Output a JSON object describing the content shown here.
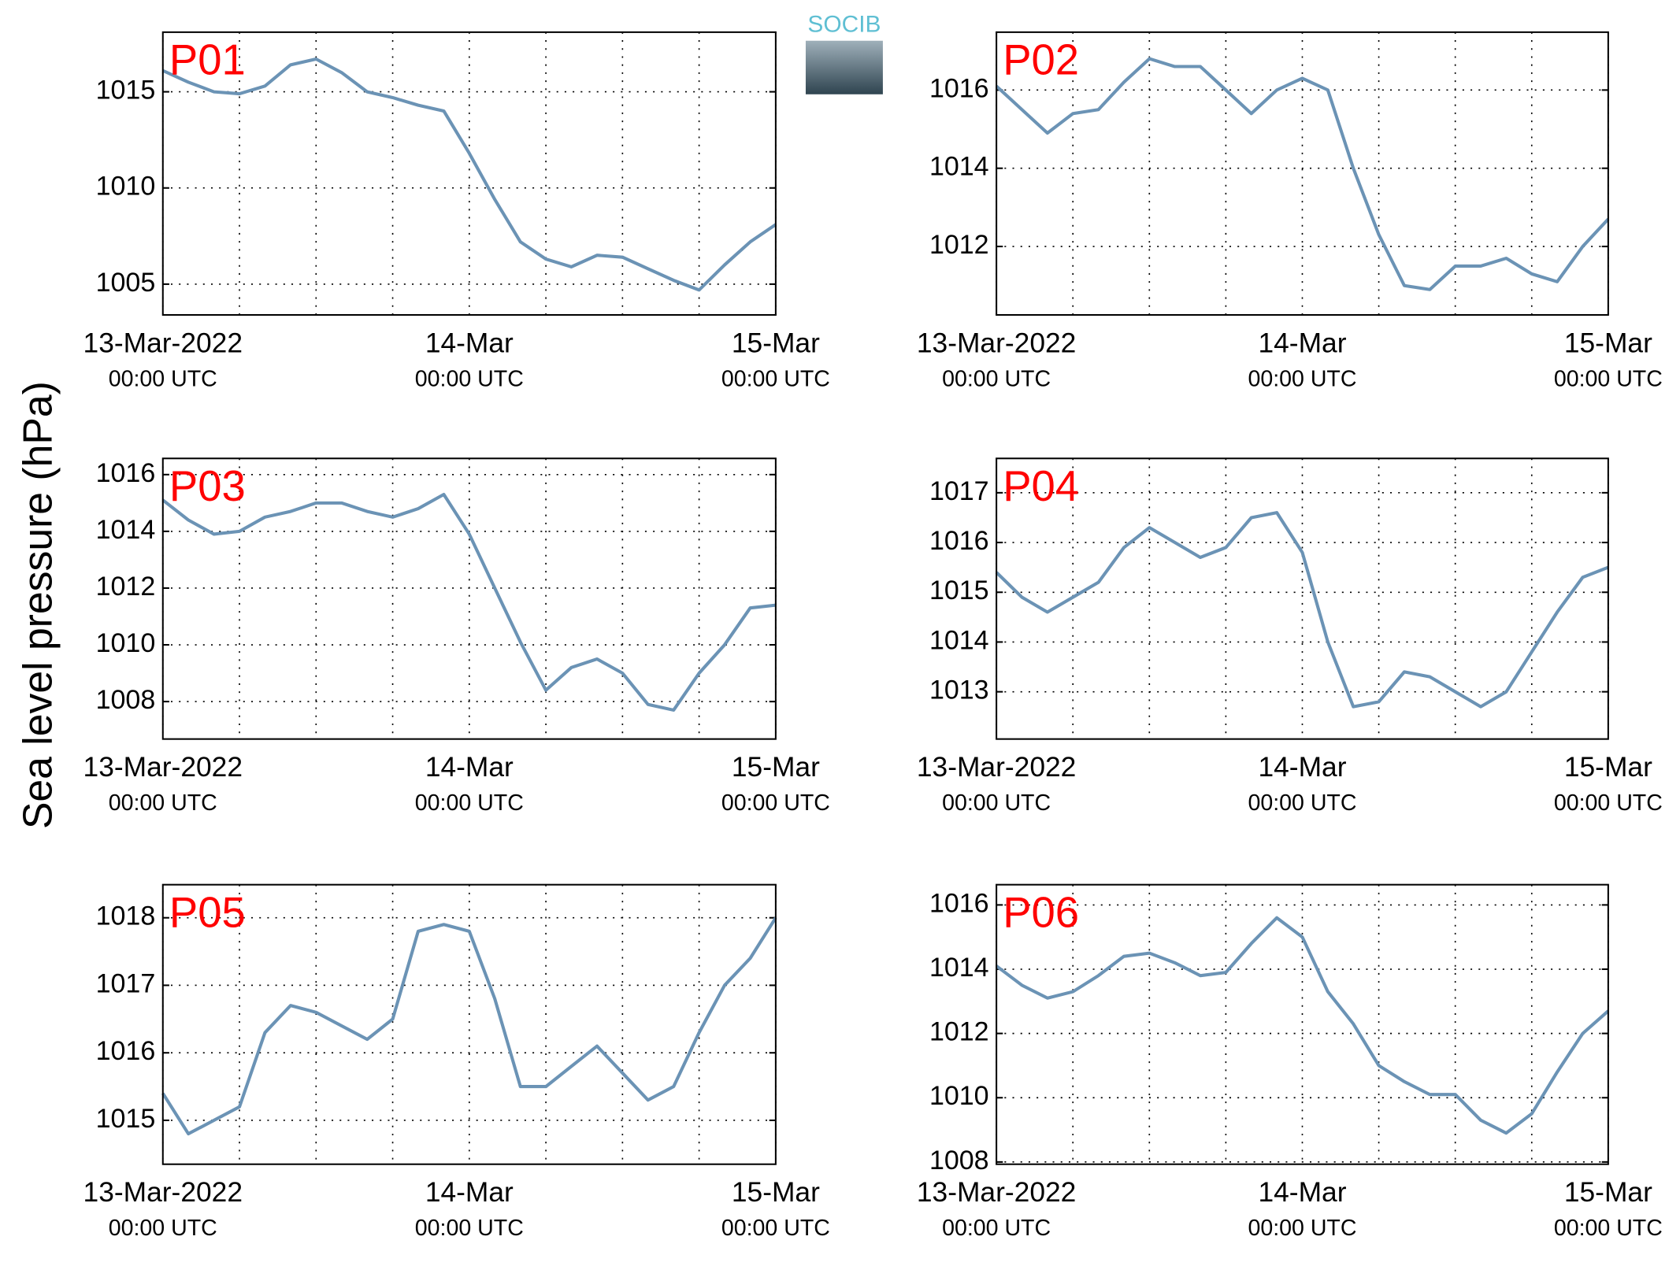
{
  "ylabel": "Sea level pressure (hPa)",
  "logo": "SOCIB",
  "chart_data": [
    {
      "type": "line",
      "label": "P01",
      "color": "#6b93b5",
      "x": [
        "2022-03-13T00:00",
        "2022-03-13T02:00",
        "2022-03-13T04:00",
        "2022-03-13T06:00",
        "2022-03-13T08:00",
        "2022-03-13T10:00",
        "2022-03-13T12:00",
        "2022-03-13T14:00",
        "2022-03-13T16:00",
        "2022-03-13T18:00",
        "2022-03-13T20:00",
        "2022-03-13T22:00",
        "2022-03-14T00:00",
        "2022-03-14T02:00",
        "2022-03-14T04:00",
        "2022-03-14T06:00",
        "2022-03-14T08:00",
        "2022-03-14T10:00",
        "2022-03-14T12:00",
        "2022-03-14T14:00",
        "2022-03-14T16:00",
        "2022-03-14T18:00",
        "2022-03-14T20:00",
        "2022-03-14T22:00",
        "2022-03-15T00:00"
      ],
      "values": [
        1016.1,
        1015.5,
        1015.0,
        1014.9,
        1015.3,
        1016.4,
        1016.7,
        1016.0,
        1015.0,
        1014.7,
        1014.3,
        1014.0,
        1011.8,
        1009.4,
        1007.2,
        1006.3,
        1005.9,
        1006.5,
        1006.4,
        1005.8,
        1005.2,
        1004.7,
        1006.0,
        1007.2,
        1008.1
      ],
      "xlim": [
        "2022-03-13T00:00",
        "2022-03-15T00:00"
      ],
      "xticks": [
        {
          "value": "2022-03-13T00:00",
          "label": [
            "13-Mar-2022",
            "00:00 UTC"
          ]
        },
        {
          "value": "2022-03-14T00:00",
          "label": [
            "14-Mar",
            "00:00 UTC"
          ]
        },
        {
          "value": "2022-03-15T00:00",
          "label": [
            "15-Mar",
            "00:00 UTC"
          ]
        }
      ],
      "xminor": [
        "2022-03-13T06:00",
        "2022-03-13T12:00",
        "2022-03-13T18:00",
        "2022-03-14T06:00",
        "2022-03-14T12:00",
        "2022-03-14T18:00"
      ],
      "ylim": [
        1003.4,
        1018.1
      ],
      "yticks": [
        1005,
        1010,
        1015
      ],
      "grid": true
    },
    {
      "type": "line",
      "label": "P02",
      "color": "#6b93b5",
      "x": [
        "2022-03-13T00:00",
        "2022-03-13T02:00",
        "2022-03-13T04:00",
        "2022-03-13T06:00",
        "2022-03-13T08:00",
        "2022-03-13T10:00",
        "2022-03-13T12:00",
        "2022-03-13T14:00",
        "2022-03-13T16:00",
        "2022-03-13T18:00",
        "2022-03-13T20:00",
        "2022-03-13T22:00",
        "2022-03-14T00:00",
        "2022-03-14T02:00",
        "2022-03-14T04:00",
        "2022-03-14T06:00",
        "2022-03-14T08:00",
        "2022-03-14T10:00",
        "2022-03-14T12:00",
        "2022-03-14T14:00",
        "2022-03-14T16:00",
        "2022-03-14T18:00",
        "2022-03-14T20:00",
        "2022-03-14T22:00",
        "2022-03-15T00:00"
      ],
      "values": [
        1016.1,
        1015.5,
        1014.9,
        1015.4,
        1015.5,
        1016.2,
        1016.8,
        1016.6,
        1016.6,
        1016.0,
        1015.4,
        1016.0,
        1016.3,
        1016.0,
        1014.0,
        1012.3,
        1011.0,
        1010.9,
        1011.5,
        1011.5,
        1011.7,
        1011.3,
        1011.1,
        1012.0,
        1012.7
      ],
      "xlim": [
        "2022-03-13T00:00",
        "2022-03-15T00:00"
      ],
      "xticks": [
        {
          "value": "2022-03-13T00:00",
          "label": [
            "13-Mar-2022",
            "00:00 UTC"
          ]
        },
        {
          "value": "2022-03-14T00:00",
          "label": [
            "14-Mar",
            "00:00 UTC"
          ]
        },
        {
          "value": "2022-03-15T00:00",
          "label": [
            "15-Mar",
            "00:00 UTC"
          ]
        }
      ],
      "xminor": [
        "2022-03-13T06:00",
        "2022-03-13T12:00",
        "2022-03-13T18:00",
        "2022-03-14T06:00",
        "2022-03-14T12:00",
        "2022-03-14T18:00"
      ],
      "ylim": [
        1010.25,
        1017.48
      ],
      "yticks": [
        1012,
        1014,
        1016
      ],
      "grid": true
    },
    {
      "type": "line",
      "label": "P03",
      "color": "#6b93b5",
      "x": [
        "2022-03-13T00:00",
        "2022-03-13T02:00",
        "2022-03-13T04:00",
        "2022-03-13T06:00",
        "2022-03-13T08:00",
        "2022-03-13T10:00",
        "2022-03-13T12:00",
        "2022-03-13T14:00",
        "2022-03-13T16:00",
        "2022-03-13T18:00",
        "2022-03-13T20:00",
        "2022-03-13T22:00",
        "2022-03-14T00:00",
        "2022-03-14T02:00",
        "2022-03-14T04:00",
        "2022-03-14T06:00",
        "2022-03-14T08:00",
        "2022-03-14T10:00",
        "2022-03-14T12:00",
        "2022-03-14T14:00",
        "2022-03-14T16:00",
        "2022-03-14T18:00",
        "2022-03-14T20:00",
        "2022-03-14T22:00",
        "2022-03-15T00:00"
      ],
      "values": [
        1015.1,
        1014.4,
        1013.9,
        1014.0,
        1014.5,
        1014.7,
        1015.0,
        1015.0,
        1014.7,
        1014.5,
        1014.8,
        1015.3,
        1013.9,
        1012.0,
        1010.1,
        1008.4,
        1009.2,
        1009.5,
        1009.0,
        1007.9,
        1007.7,
        1009.0,
        1010.0,
        1011.3,
        1011.4
      ],
      "xlim": [
        "2022-03-13T00:00",
        "2022-03-15T00:00"
      ],
      "xticks": [
        {
          "value": "2022-03-13T00:00",
          "label": [
            "13-Mar-2022",
            "00:00 UTC"
          ]
        },
        {
          "value": "2022-03-14T00:00",
          "label": [
            "14-Mar",
            "00:00 UTC"
          ]
        },
        {
          "value": "2022-03-15T00:00",
          "label": [
            "15-Mar",
            "00:00 UTC"
          ]
        }
      ],
      "xminor": [
        "2022-03-13T06:00",
        "2022-03-13T12:00",
        "2022-03-13T18:00",
        "2022-03-14T06:00",
        "2022-03-14T12:00",
        "2022-03-14T18:00"
      ],
      "ylim": [
        1006.68,
        1016.57
      ],
      "yticks": [
        1008,
        1010,
        1012,
        1014,
        1016
      ],
      "grid": true
    },
    {
      "type": "line",
      "label": "P04",
      "color": "#6b93b5",
      "x": [
        "2022-03-13T00:00",
        "2022-03-13T02:00",
        "2022-03-13T04:00",
        "2022-03-13T06:00",
        "2022-03-13T08:00",
        "2022-03-13T10:00",
        "2022-03-13T12:00",
        "2022-03-13T14:00",
        "2022-03-13T16:00",
        "2022-03-13T18:00",
        "2022-03-13T20:00",
        "2022-03-13T22:00",
        "2022-03-14T00:00",
        "2022-03-14T02:00",
        "2022-03-14T04:00",
        "2022-03-14T06:00",
        "2022-03-14T08:00",
        "2022-03-14T10:00",
        "2022-03-14T12:00",
        "2022-03-14T14:00",
        "2022-03-14T16:00",
        "2022-03-14T18:00",
        "2022-03-14T20:00",
        "2022-03-14T22:00",
        "2022-03-15T00:00"
      ],
      "values": [
        1015.4,
        1014.9,
        1014.6,
        1014.9,
        1015.2,
        1015.9,
        1016.3,
        1016.0,
        1015.7,
        1015.9,
        1016.5,
        1016.6,
        1015.8,
        1014.0,
        1012.7,
        1012.8,
        1013.4,
        1013.3,
        1013.0,
        1012.7,
        1013.0,
        1013.8,
        1014.6,
        1015.3,
        1015.5
      ],
      "xlim": [
        "2022-03-13T00:00",
        "2022-03-15T00:00"
      ],
      "xticks": [
        {
          "value": "2022-03-13T00:00",
          "label": [
            "13-Mar-2022",
            "00:00 UTC"
          ]
        },
        {
          "value": "2022-03-14T00:00",
          "label": [
            "14-Mar",
            "00:00 UTC"
          ]
        },
        {
          "value": "2022-03-15T00:00",
          "label": [
            "15-Mar",
            "00:00 UTC"
          ]
        }
      ],
      "xminor": [
        "2022-03-13T06:00",
        "2022-03-13T12:00",
        "2022-03-13T18:00",
        "2022-03-14T06:00",
        "2022-03-14T12:00",
        "2022-03-14T18:00"
      ],
      "ylim": [
        1012.05,
        1017.69
      ],
      "yticks": [
        1013,
        1014,
        1015,
        1016,
        1017
      ],
      "grid": true
    },
    {
      "type": "line",
      "label": "P05",
      "color": "#6b93b5",
      "x": [
        "2022-03-13T00:00",
        "2022-03-13T02:00",
        "2022-03-13T04:00",
        "2022-03-13T06:00",
        "2022-03-13T08:00",
        "2022-03-13T10:00",
        "2022-03-13T12:00",
        "2022-03-13T14:00",
        "2022-03-13T16:00",
        "2022-03-13T18:00",
        "2022-03-13T20:00",
        "2022-03-13T22:00",
        "2022-03-14T00:00",
        "2022-03-14T02:00",
        "2022-03-14T04:00",
        "2022-03-14T06:00",
        "2022-03-14T08:00",
        "2022-03-14T10:00",
        "2022-03-14T12:00",
        "2022-03-14T14:00",
        "2022-03-14T16:00",
        "2022-03-14T18:00",
        "2022-03-14T20:00",
        "2022-03-14T22:00",
        "2022-03-15T00:00"
      ],
      "values": [
        1015.4,
        1014.8,
        1015.0,
        1015.2,
        1016.3,
        1016.7,
        1016.6,
        1016.4,
        1016.2,
        1016.5,
        1017.8,
        1017.9,
        1017.8,
        1016.8,
        1015.5,
        1015.5,
        1015.8,
        1016.1,
        1015.7,
        1015.3,
        1015.5,
        1016.3,
        1017.0,
        1017.4,
        1018.0
      ],
      "xlim": [
        "2022-03-13T00:00",
        "2022-03-15T00:00"
      ],
      "xticks": [
        {
          "value": "2022-03-13T00:00",
          "label": [
            "13-Mar-2022",
            "00:00 UTC"
          ]
        },
        {
          "value": "2022-03-14T00:00",
          "label": [
            "14-Mar",
            "00:00 UTC"
          ]
        },
        {
          "value": "2022-03-15T00:00",
          "label": [
            "15-Mar",
            "00:00 UTC"
          ]
        }
      ],
      "xminor": [
        "2022-03-13T06:00",
        "2022-03-13T12:00",
        "2022-03-13T18:00",
        "2022-03-14T06:00",
        "2022-03-14T12:00",
        "2022-03-14T18:00"
      ],
      "ylim": [
        1014.35,
        1018.49
      ],
      "yticks": [
        1015,
        1016,
        1017,
        1018
      ],
      "grid": true
    },
    {
      "type": "line",
      "label": "P06",
      "color": "#6b93b5",
      "x": [
        "2022-03-13T00:00",
        "2022-03-13T02:00",
        "2022-03-13T04:00",
        "2022-03-13T06:00",
        "2022-03-13T08:00",
        "2022-03-13T10:00",
        "2022-03-13T12:00",
        "2022-03-13T14:00",
        "2022-03-13T16:00",
        "2022-03-13T18:00",
        "2022-03-13T20:00",
        "2022-03-13T22:00",
        "2022-03-14T00:00",
        "2022-03-14T02:00",
        "2022-03-14T04:00",
        "2022-03-14T06:00",
        "2022-03-14T08:00",
        "2022-03-14T10:00",
        "2022-03-14T12:00",
        "2022-03-14T14:00",
        "2022-03-14T16:00",
        "2022-03-14T18:00",
        "2022-03-14T20:00",
        "2022-03-14T22:00",
        "2022-03-15T00:00"
      ],
      "values": [
        1014.1,
        1013.5,
        1013.1,
        1013.3,
        1013.8,
        1014.4,
        1014.5,
        1014.2,
        1013.8,
        1013.9,
        1014.8,
        1015.6,
        1015.0,
        1013.3,
        1012.3,
        1011.0,
        1010.5,
        1010.1,
        1010.1,
        1009.3,
        1008.9,
        1009.5,
        1010.8,
        1012.0,
        1012.7
      ],
      "xlim": [
        "2022-03-13T00:00",
        "2022-03-15T00:00"
      ],
      "xticks": [
        {
          "value": "2022-03-13T00:00",
          "label": [
            "13-Mar-2022",
            "00:00 UTC"
          ]
        },
        {
          "value": "2022-03-14T00:00",
          "label": [
            "14-Mar",
            "00:00 UTC"
          ]
        },
        {
          "value": "2022-03-15T00:00",
          "label": [
            "15-Mar",
            "00:00 UTC"
          ]
        }
      ],
      "xminor": [
        "2022-03-13T06:00",
        "2022-03-13T12:00",
        "2022-03-13T18:00",
        "2022-03-14T06:00",
        "2022-03-14T12:00",
        "2022-03-14T18:00"
      ],
      "ylim": [
        1007.93,
        1016.63
      ],
      "yticks": [
        1008,
        1010,
        1012,
        1014,
        1016
      ],
      "grid": true
    }
  ]
}
